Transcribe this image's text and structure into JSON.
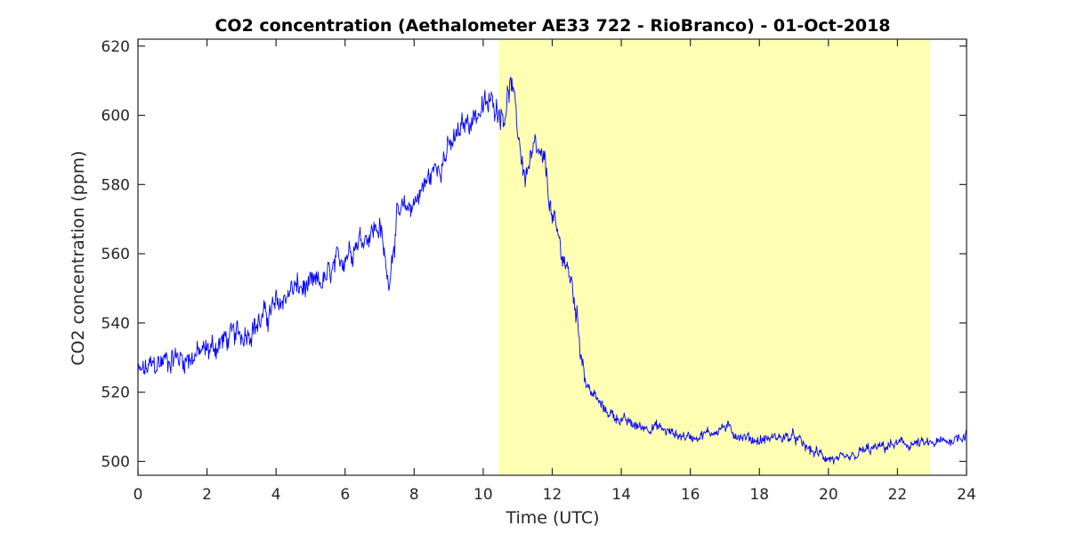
{
  "chart_data": {
    "type": "line",
    "title": "CO2 concentration (Aethalometer AE33 722 - RioBranco) - 01-Oct-2018",
    "xlabel": "Time (UTC)",
    "ylabel": "CO2 concentration (ppm)",
    "xlim": [
      0,
      24
    ],
    "ylim": [
      496,
      622
    ],
    "xticks": [
      0,
      2,
      4,
      6,
      8,
      10,
      12,
      14,
      16,
      18,
      20,
      22,
      24
    ],
    "yticks": [
      500,
      520,
      540,
      560,
      580,
      600,
      620
    ],
    "grid": false,
    "legend": "none",
    "highlight_band": {
      "x_start": 10.45,
      "x_end": 22.95,
      "color": "#ffffb3"
    },
    "series": [
      {
        "color": "#0000ff",
        "x": [
          0,
          0.5,
          1,
          1.5,
          2,
          2.5,
          3,
          3.5,
          4,
          4.5,
          5,
          5.5,
          6,
          6.5,
          7,
          7.25,
          7.5,
          8,
          8.5,
          9,
          9.5,
          10,
          10.3,
          10.6,
          10.8,
          11,
          11.2,
          11.5,
          11.8,
          12,
          12.3,
          12.6,
          12.8,
          13,
          13.5,
          14,
          14.5,
          15,
          15.5,
          16,
          16.5,
          17,
          17.5,
          18,
          18.5,
          19,
          19.5,
          20,
          20.3,
          20.7,
          21,
          21.5,
          22,
          22.5,
          23,
          23.5,
          24
        ],
        "y": [
          525,
          528,
          530,
          530,
          532,
          535,
          537,
          540,
          545,
          550,
          550,
          553,
          560,
          565,
          568,
          552,
          570,
          575,
          583,
          590,
          598,
          602,
          604,
          600,
          610,
          596,
          582,
          590,
          585,
          570,
          560,
          550,
          535,
          522,
          515,
          512,
          510,
          510,
          508,
          507,
          508,
          510,
          507,
          506,
          507,
          507,
          503,
          501,
          500,
          501,
          503,
          504,
          505,
          505,
          505,
          506,
          508
        ]
      }
    ]
  }
}
